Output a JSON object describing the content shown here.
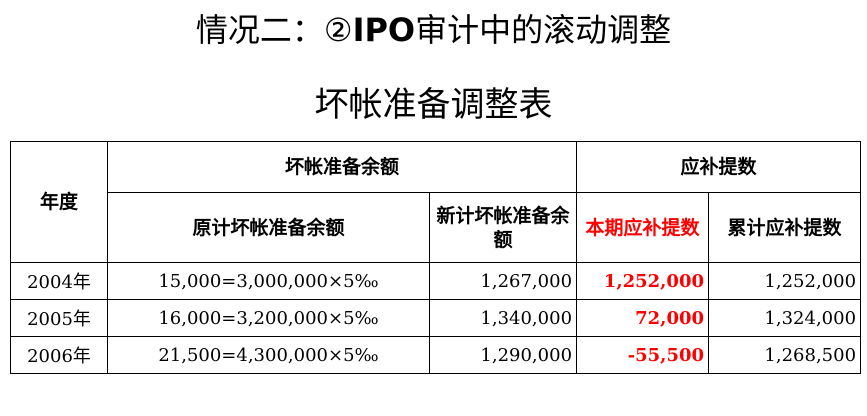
{
  "title": {
    "prefix": "情况二：②",
    "bold": "IPO",
    "suffix": "审计中的滚动调整"
  },
  "subtitle": "坏帐准备调整表",
  "table": {
    "headers": {
      "year": "年度",
      "group_balance": "坏帐准备余额",
      "group_provision": "应补提数",
      "original_balance": "原计坏帐准备余额",
      "new_balance": "新计坏帐准备余额",
      "current_provision": "本期应补提数",
      "cumulative_provision": "累计应补提数"
    },
    "accent_color": "#ff0000",
    "rows": [
      {
        "year": "2004年",
        "original": "15,000=3,000,000×5‰",
        "new": "1,267,000",
        "current": "1,252,000",
        "cumulative": "1,252,000"
      },
      {
        "year": "2005年",
        "original": "16,000=3,200,000×5‰",
        "new": "1,340,000",
        "current": "72,000",
        "cumulative": "1,324,000"
      },
      {
        "year": "2006年",
        "original": "21,500=4,300,000×5‰",
        "new": "1,290,000",
        "current": "-55,500",
        "cumulative": "1,268,500"
      }
    ]
  }
}
